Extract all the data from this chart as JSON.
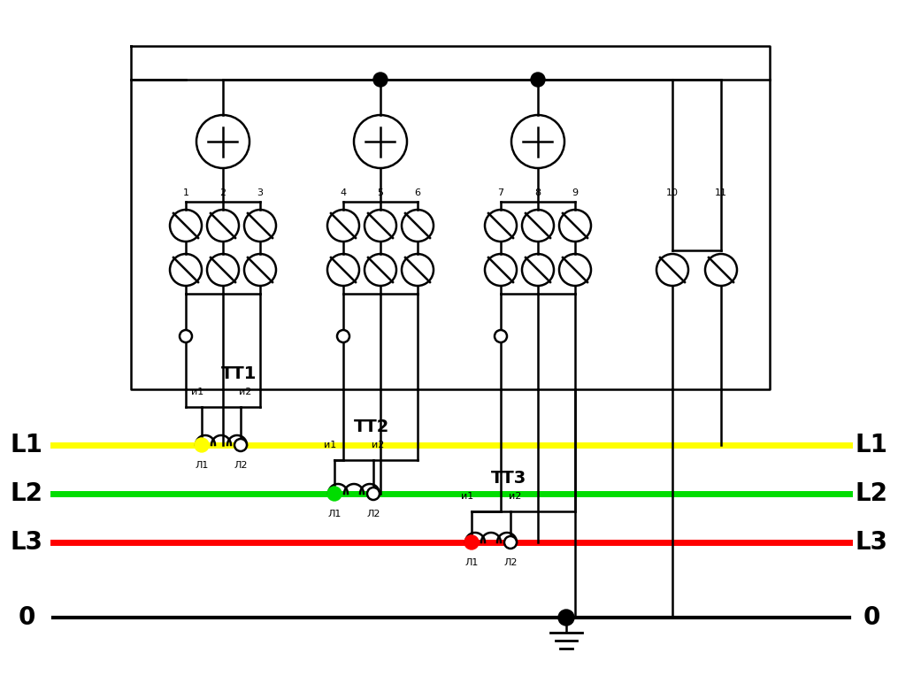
{
  "bg_color": "#ffffff",
  "yellow_color": "#ffff00",
  "green_color": "#00dd00",
  "red_color": "#ff0000",
  "figsize": [
    10.15,
    7.81
  ],
  "dpi": 100,
  "tt_labels": [
    "ТТ1",
    "ТТ2",
    "ТТ3"
  ]
}
